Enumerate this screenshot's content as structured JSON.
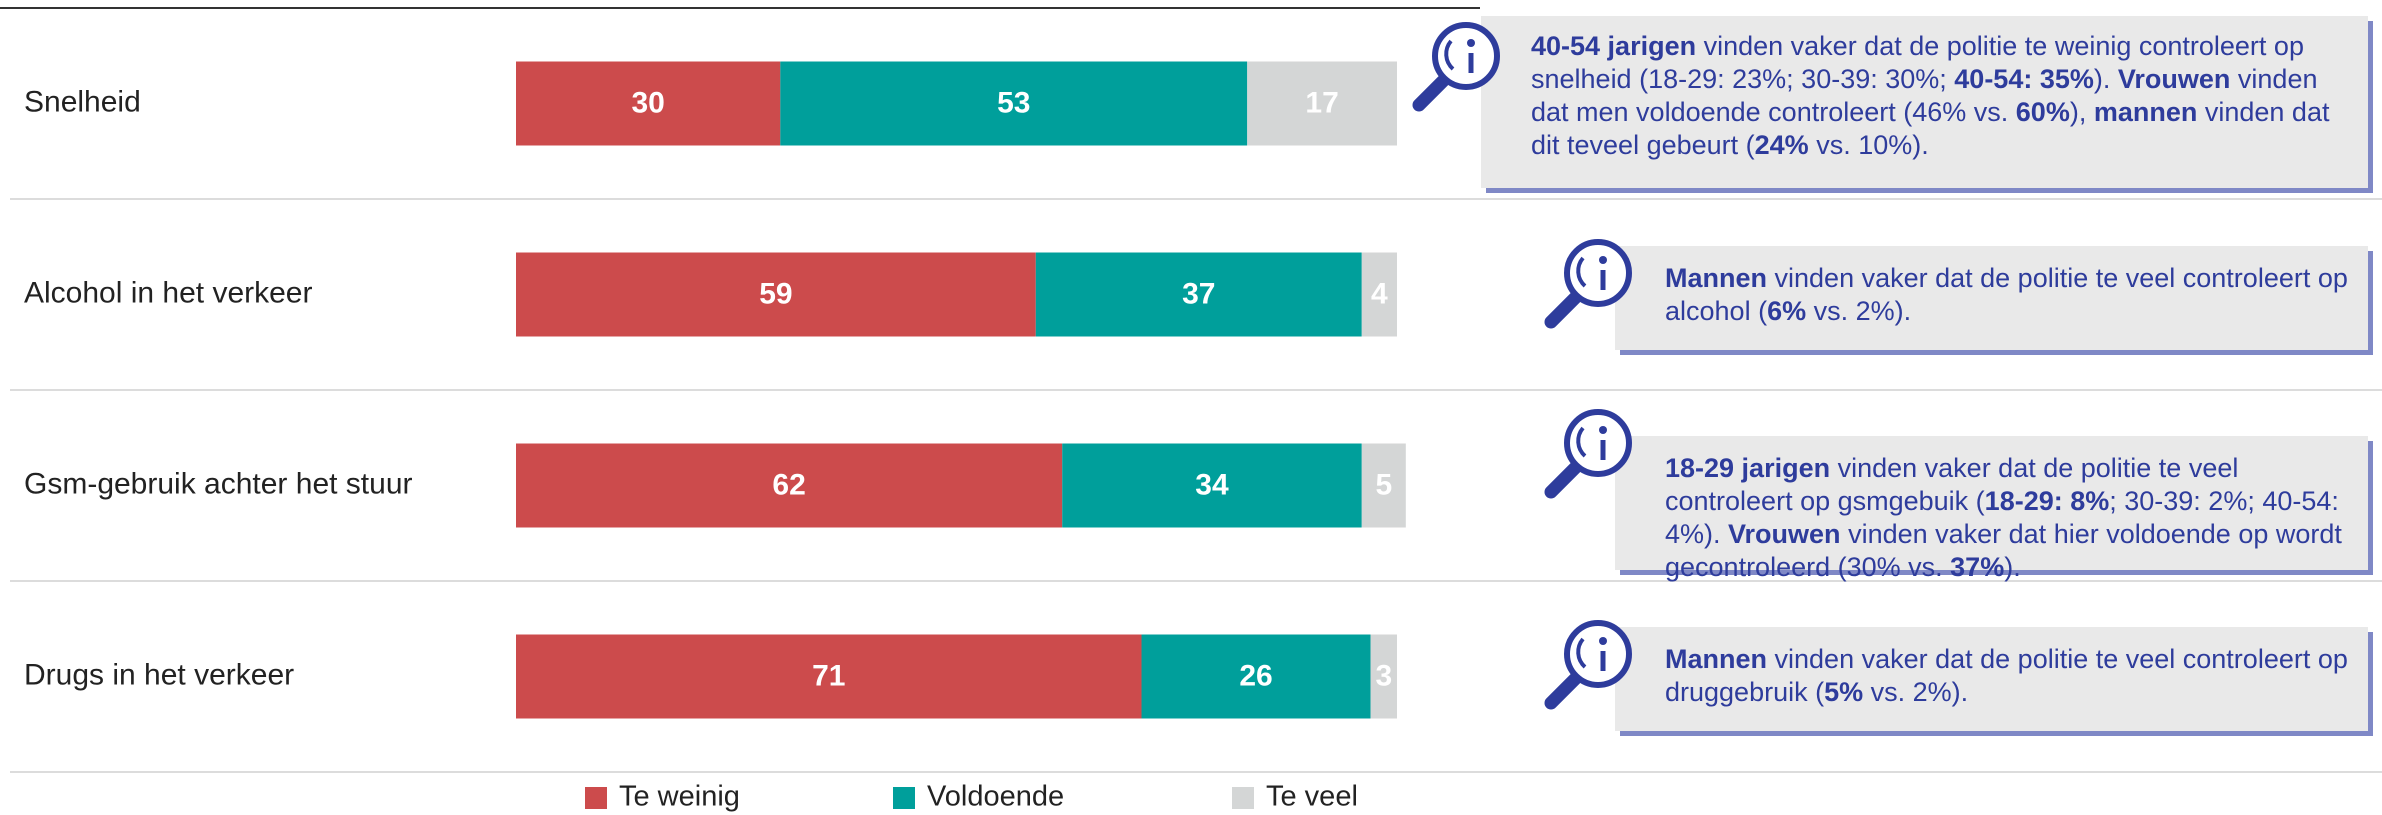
{
  "chart_data": {
    "type": "stacked-bar",
    "categories": [
      "Snelheid",
      "Alcohol in het verkeer",
      "Gsm-gebruik achter het stuur",
      "Drugs in het verkeer"
    ],
    "series": [
      {
        "name": "Te weinig",
        "color": "#cc4b4c",
        "values": [
          30,
          59,
          62,
          71
        ]
      },
      {
        "name": "Voldoende",
        "color": "#009f9b",
        "values": [
          53,
          37,
          34,
          26
        ]
      },
      {
        "name": "Te veel",
        "color": "#d4d6d6",
        "values": [
          17,
          4,
          5,
          3
        ]
      }
    ],
    "annotations": [
      {
        "segments": [
          {
            "text": "40-54 jarigen",
            "bold": true
          },
          {
            "text": " vinden vaker dat de politie te weinig controleert op snelheid (18-29: 23%; 30-39: 30%; "
          },
          {
            "text": "40-54: 35%",
            "bold": true
          },
          {
            "text": "). "
          },
          {
            "text": "Vrouwen",
            "bold": true
          },
          {
            "text": " vinden dat men voldoende controleert (46% vs. "
          },
          {
            "text": "60%",
            "bold": true
          },
          {
            "text": "), "
          },
          {
            "text": "mannen",
            "bold": true
          },
          {
            "text": " vinden dat dit teveel gebeurt ("
          },
          {
            "text": "24%",
            "bold": true
          },
          {
            "text": " vs. 10%)."
          }
        ]
      },
      {
        "segments": [
          {
            "text": "Mannen",
            "bold": true
          },
          {
            "text": " vinden vaker dat de politie te veel controleert op alcohol ("
          },
          {
            "text": "6%",
            "bold": true
          },
          {
            "text": " vs. 2%)."
          }
        ]
      },
      {
        "segments": [
          {
            "text": "18-29 jarigen",
            "bold": true
          },
          {
            "text": " vinden vaker dat de politie te veel controleert op gsmgebuik ("
          },
          {
            "text": "18-29: 8%",
            "bold": true
          },
          {
            "text": "; 30-39: 2%; 40-54: 4%). "
          },
          {
            "text": "Vrouwen",
            "bold": true
          },
          {
            "text": " vinden vaker dat hier voldoende op wordt gecontroleerd (30% vs. "
          },
          {
            "text": "37%",
            "bold": true
          },
          {
            "text": ")."
          }
        ]
      },
      {
        "segments": [
          {
            "text": "Mannen",
            "bold": true
          },
          {
            "text": " vinden vaker dat de politie te veel controleert op druggebruik ("
          },
          {
            "text": "5%",
            "bold": true
          },
          {
            "text": " vs. 2%)."
          }
        ]
      }
    ],
    "legend": "bottom"
  }
}
